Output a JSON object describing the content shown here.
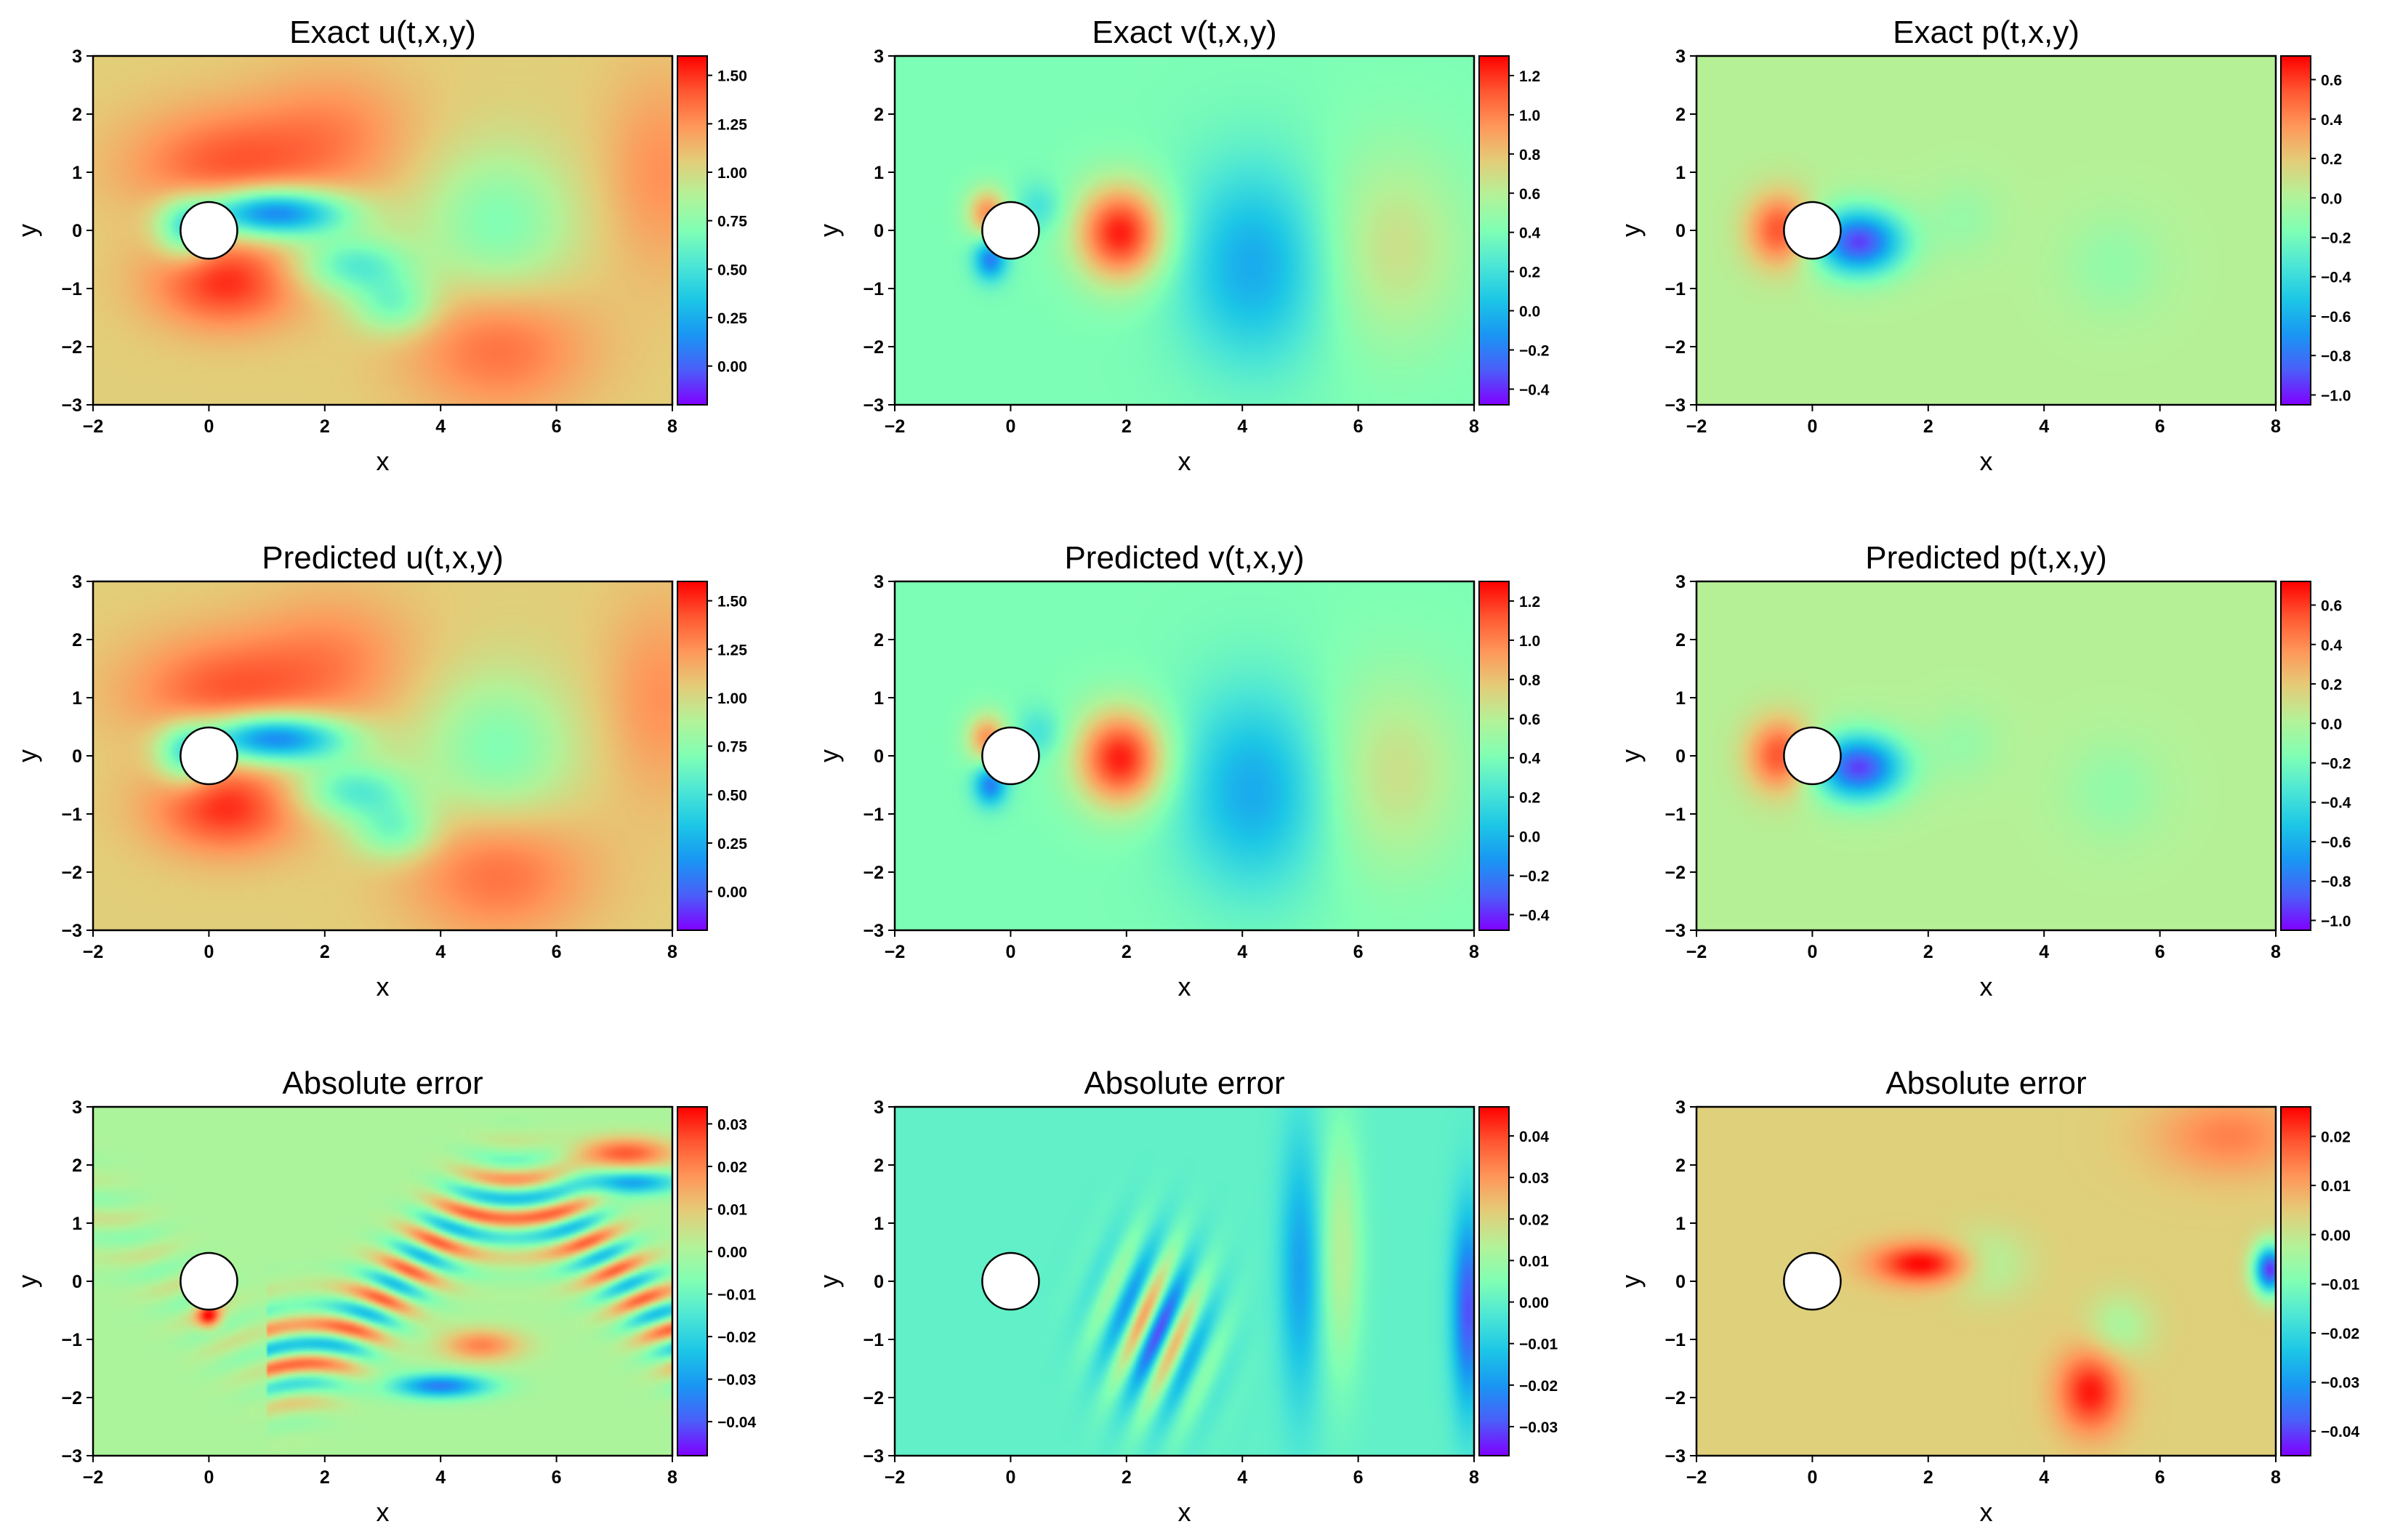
{
  "colors": {
    "colormap": [
      "#8000ff",
      "#4a5ef9",
      "#1996f3",
      "#1cc6e6",
      "#4ce6d6",
      "#80ffb4",
      "#b3f298",
      "#e4cc78",
      "#ff9659",
      "#ff5630",
      "#ff0000"
    ],
    "background": "#ffffff",
    "obstacle_fill": "#ffffff",
    "obstacle_stroke": "#000000"
  },
  "chart_data": [
    {
      "id": "exact-u",
      "type": "heatmap",
      "title": "Exact u(t,x,y)",
      "xlabel": "x",
      "ylabel": "y",
      "xlim": [
        -2,
        8
      ],
      "ylim": [
        -3,
        3
      ],
      "xticks": [
        "−2",
        "0",
        "2",
        "4",
        "6",
        "8"
      ],
      "yticks": [
        "−3",
        "−2",
        "−1",
        "0",
        "1",
        "2",
        "3"
      ],
      "field": "u",
      "colorbar": {
        "min": -0.2,
        "max": 1.6,
        "ticks": [
          -0.0,
          0.25,
          0.5,
          0.75,
          1.0,
          1.25,
          1.5
        ],
        "tick_labels": [
          "0.00",
          "0.25",
          "0.50",
          "0.75",
          "1.00",
          "1.25",
          "1.50"
        ]
      },
      "cylinder": {
        "x": 0,
        "y": 0,
        "r": 0.5
      }
    },
    {
      "id": "exact-v",
      "type": "heatmap",
      "title": "Exact v(t,x,y)",
      "xlabel": "x",
      "ylabel": "y",
      "xlim": [
        -2,
        8
      ],
      "ylim": [
        -3,
        3
      ],
      "xticks": [
        "−2",
        "0",
        "2",
        "4",
        "6",
        "8"
      ],
      "yticks": [
        "−3",
        "−2",
        "−1",
        "0",
        "1",
        "2",
        "3"
      ],
      "field": "v",
      "colorbar": {
        "min": -0.48,
        "max": 1.3,
        "ticks": [
          -0.4,
          -0.2,
          0.0,
          0.2,
          0.4,
          0.6,
          0.8,
          1.0,
          1.2
        ],
        "tick_labels": [
          "−0.4",
          "−0.2",
          "0.0",
          "0.2",
          "0.4",
          "0.6",
          "0.8",
          "1.0",
          "1.2"
        ]
      },
      "cylinder": {
        "x": 0,
        "y": 0,
        "r": 0.5
      }
    },
    {
      "id": "exact-p",
      "type": "heatmap",
      "title": "Exact p(t,x,y)",
      "xlabel": "x",
      "ylabel": "y",
      "xlim": [
        -2,
        8
      ],
      "ylim": [
        -3,
        3
      ],
      "xticks": [
        "−2",
        "0",
        "2",
        "4",
        "6",
        "8"
      ],
      "yticks": [
        "−3",
        "−2",
        "−1",
        "0",
        "1",
        "2",
        "3"
      ],
      "field": "p",
      "colorbar": {
        "min": -1.05,
        "max": 0.72,
        "ticks": [
          -1.0,
          -0.8,
          -0.6,
          -0.4,
          -0.2,
          0.0,
          0.2,
          0.4,
          0.6
        ],
        "tick_labels": [
          "−1.0",
          "−0.8",
          "−0.6",
          "−0.4",
          "−0.2",
          "0.0",
          "0.2",
          "0.4",
          "0.6"
        ]
      },
      "cylinder": {
        "x": 0,
        "y": 0,
        "r": 0.5
      }
    },
    {
      "id": "pred-u",
      "type": "heatmap",
      "title": "Predicted u(t,x,y)",
      "xlabel": "x",
      "ylabel": "y",
      "xlim": [
        -2,
        8
      ],
      "ylim": [
        -3,
        3
      ],
      "xticks": [
        "−2",
        "0",
        "2",
        "4",
        "6",
        "8"
      ],
      "yticks": [
        "−3",
        "−2",
        "−1",
        "0",
        "1",
        "2",
        "3"
      ],
      "field": "u",
      "colorbar": {
        "min": -0.2,
        "max": 1.6,
        "ticks": [
          -0.0,
          0.25,
          0.5,
          0.75,
          1.0,
          1.25,
          1.5
        ],
        "tick_labels": [
          "0.00",
          "0.25",
          "0.50",
          "0.75",
          "1.00",
          "1.25",
          "1.50"
        ]
      },
      "cylinder": {
        "x": 0,
        "y": 0,
        "r": 0.5
      }
    },
    {
      "id": "pred-v",
      "type": "heatmap",
      "title": "Predicted v(t,x,y)",
      "xlabel": "x",
      "ylabel": "y",
      "xlim": [
        -2,
        8
      ],
      "ylim": [
        -3,
        3
      ],
      "xticks": [
        "−2",
        "0",
        "2",
        "4",
        "6",
        "8"
      ],
      "yticks": [
        "−3",
        "−2",
        "−1",
        "0",
        "1",
        "2",
        "3"
      ],
      "field": "v",
      "colorbar": {
        "min": -0.48,
        "max": 1.3,
        "ticks": [
          -0.4,
          -0.2,
          0.0,
          0.2,
          0.4,
          0.6,
          0.8,
          1.0,
          1.2
        ],
        "tick_labels": [
          "−0.4",
          "−0.2",
          "0.0",
          "0.2",
          "0.4",
          "0.6",
          "0.8",
          "1.0",
          "1.2"
        ]
      },
      "cylinder": {
        "x": 0,
        "y": 0,
        "r": 0.5
      }
    },
    {
      "id": "pred-p",
      "type": "heatmap",
      "title": "Predicted p(t,x,y)",
      "xlabel": "x",
      "ylabel": "y",
      "xlim": [
        -2,
        8
      ],
      "ylim": [
        -3,
        3
      ],
      "xticks": [
        "−2",
        "0",
        "2",
        "4",
        "6",
        "8"
      ],
      "yticks": [
        "−3",
        "−2",
        "−1",
        "0",
        "1",
        "2",
        "3"
      ],
      "field": "p",
      "colorbar": {
        "min": -1.05,
        "max": 0.72,
        "ticks": [
          -1.0,
          -0.8,
          -0.6,
          -0.4,
          -0.2,
          0.0,
          0.2,
          0.4,
          0.6
        ],
        "tick_labels": [
          "−1.0",
          "−0.8",
          "−0.6",
          "−0.4",
          "−0.2",
          "0.0",
          "0.2",
          "0.4",
          "0.6"
        ]
      },
      "cylinder": {
        "x": 0,
        "y": 0,
        "r": 0.5
      }
    },
    {
      "id": "err-u",
      "type": "heatmap",
      "title": "Absolute error",
      "xlabel": "x",
      "ylabel": "y",
      "xlim": [
        -2,
        8
      ],
      "ylim": [
        -3,
        3
      ],
      "xticks": [
        "−2",
        "0",
        "2",
        "4",
        "6",
        "8"
      ],
      "yticks": [
        "−3",
        "−2",
        "−1",
        "0",
        "1",
        "2",
        "3"
      ],
      "field": "eu",
      "colorbar": {
        "min": -0.048,
        "max": 0.034,
        "ticks": [
          -0.04,
          -0.03,
          -0.02,
          -0.01,
          0.0,
          0.01,
          0.02,
          0.03
        ],
        "tick_labels": [
          "−0.04",
          "−0.03",
          "−0.02",
          "−0.01",
          "0.00",
          "0.01",
          "0.02",
          "0.03"
        ]
      },
      "cylinder": {
        "x": 0,
        "y": 0,
        "r": 0.5
      }
    },
    {
      "id": "err-v",
      "type": "heatmap",
      "title": "Absolute error",
      "xlabel": "x",
      "ylabel": "y",
      "xlim": [
        -2,
        8
      ],
      "ylim": [
        -3,
        3
      ],
      "xticks": [
        "−2",
        "0",
        "2",
        "4",
        "6",
        "8"
      ],
      "yticks": [
        "−3",
        "−2",
        "−1",
        "0",
        "1",
        "2",
        "3"
      ],
      "field": "ev",
      "colorbar": {
        "min": -0.037,
        "max": 0.047,
        "ticks": [
          -0.03,
          -0.02,
          -0.01,
          0.0,
          0.01,
          0.02,
          0.03,
          0.04
        ],
        "tick_labels": [
          "−0.03",
          "−0.02",
          "−0.01",
          "0.00",
          "0.01",
          "0.02",
          "0.03",
          "0.04"
        ]
      },
      "cylinder": {
        "x": 0,
        "y": 0,
        "r": 0.5
      }
    },
    {
      "id": "err-p",
      "type": "heatmap",
      "title": "Absolute error",
      "xlabel": "x",
      "ylabel": "y",
      "xlim": [
        -2,
        8
      ],
      "ylim": [
        -3,
        3
      ],
      "xticks": [
        "−2",
        "0",
        "2",
        "4",
        "6",
        "8"
      ],
      "yticks": [
        "−3",
        "−2",
        "−1",
        "0",
        "1",
        "2",
        "3"
      ],
      "field": "ep",
      "colorbar": {
        "min": -0.045,
        "max": 0.026,
        "ticks": [
          -0.04,
          -0.03,
          -0.02,
          -0.01,
          0.0,
          0.01,
          0.02
        ],
        "tick_labels": [
          "−0.04",
          "−0.03",
          "−0.02",
          "−0.01",
          "0.00",
          "0.01",
          "0.02"
        ]
      },
      "cylinder": {
        "x": 0,
        "y": 0,
        "r": 0.5
      }
    }
  ]
}
